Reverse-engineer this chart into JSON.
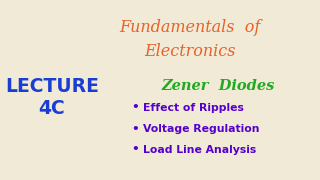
{
  "background_color": "#f0ead6",
  "title_line1": "Fundamentals  of",
  "title_line2": "Electronics",
  "title_color": "#e8622a",
  "title_fontsize": 11.5,
  "lecture_line1": "LECTURE",
  "lecture_line2": "4C",
  "lecture_color": "#1a3ed4",
  "lecture_fontsize": 13.5,
  "zener_text": "Zener  Diodes",
  "zener_color": "#22aa22",
  "zener_fontsize": 10.5,
  "bullet_color": "#5500cc",
  "bullet_items": [
    "Effect of Ripples",
    "Voltage Regulation",
    "Load Line Analysis"
  ],
  "bullet_fontsize": 7.8
}
